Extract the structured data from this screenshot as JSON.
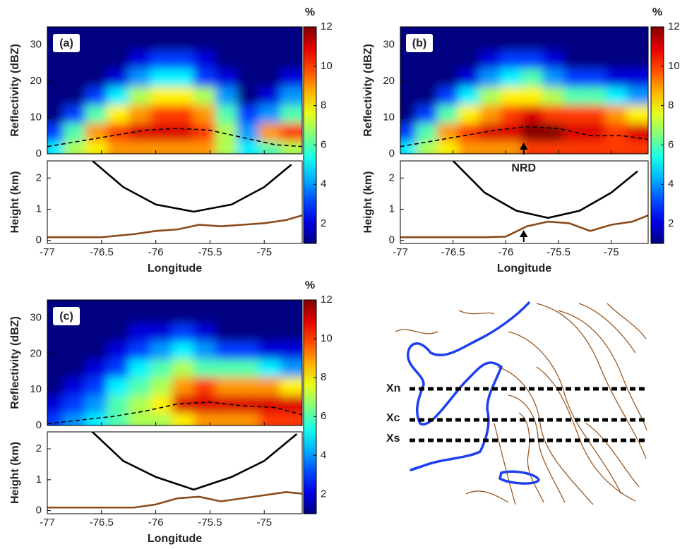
{
  "chart_data": [
    {
      "type": "heatmap",
      "panel_label": "(a)",
      "xlabel": "Longitude",
      "xlim": [
        -77,
        -74.65
      ],
      "xticks": [
        -77,
        -76.5,
        -76,
        -75.5,
        -75
      ],
      "ylabel": "Reflectivity (dBZ)",
      "ylim": [
        0,
        35
      ],
      "yticks": [
        0,
        10,
        20,
        30
      ],
      "x": [
        -76.9,
        -76.7,
        -76.5,
        -76.3,
        -76.1,
        -75.9,
        -75.7,
        -75.5,
        -75.3,
        -75.1,
        -74.9,
        -74.7
      ],
      "y": [
        2.5,
        7.5,
        12.5,
        17.5,
        22.5,
        27.5,
        32.5
      ],
      "z": [
        [
          5,
          7,
          8,
          9,
          9,
          9,
          9,
          9,
          7,
          5,
          6,
          7
        ],
        [
          3,
          6,
          9,
          10,
          11,
          11,
          11,
          10,
          7,
          4,
          9,
          10
        ],
        [
          1,
          3,
          6,
          8,
          9,
          10,
          10,
          9,
          6,
          3,
          4,
          6
        ],
        [
          1,
          1,
          3,
          5,
          7,
          8,
          8,
          7,
          4,
          1,
          2,
          4
        ],
        [
          1,
          1,
          1,
          2,
          4,
          5,
          5,
          3,
          2,
          1,
          1,
          2
        ],
        [
          1,
          1,
          1,
          1,
          2,
          3,
          3,
          2,
          1,
          1,
          1,
          1
        ],
        [
          1,
          1,
          1,
          1,
          1,
          1,
          1,
          1,
          1,
          1,
          1,
          1
        ]
      ],
      "colormap": "jet",
      "clim": [
        1,
        12
      ],
      "colorbar_label": "%",
      "colorbar_ticks": [
        2,
        4,
        6,
        8,
        10,
        12
      ],
      "series": [
        {
          "color": "#000000",
          "dash": true,
          "x": [
            -77,
            -76.7,
            -76.4,
            -76.1,
            -75.8,
            -75.5,
            -75.2,
            -74.9,
            -74.65
          ],
          "values": [
            2,
            3.5,
            5,
            6.5,
            7,
            6.5,
            4.5,
            2.5,
            2
          ]
        }
      ],
      "lower": {
        "ylabel": "Height (km)",
        "ylim": [
          -0.1,
          2.55
        ],
        "yticks": [
          0,
          1,
          2
        ],
        "series": [
          {
            "color": "#000000",
            "x": [
              -76.6,
              -76.3,
              -76,
              -75.65,
              -75.3,
              -75,
              -74.75
            ],
            "values": [
              2.6,
              1.71,
              1.15,
              0.92,
              1.15,
              1.71,
              2.43
            ]
          },
          {
            "color": "#8b4a1a",
            "x": [
              -77,
              -76.5,
              -76.2,
              -76,
              -75.8,
              -75.6,
              -75.4,
              -75.2,
              -75,
              -74.8,
              -74.65
            ],
            "values": [
              0.1,
              0.1,
              0.2,
              0.3,
              0.35,
              0.5,
              0.45,
              0.5,
              0.55,
              0.65,
              0.8
            ]
          }
        ]
      }
    },
    {
      "type": "heatmap",
      "panel_label": "(b)",
      "xlabel": "Longitude",
      "xlim": [
        -77,
        -74.65
      ],
      "xticks": [
        -77,
        -76.5,
        -76,
        -75.5,
        -75
      ],
      "ylabel": "Reflectivity (dBZ)",
      "ylim": [
        0,
        35
      ],
      "yticks": [
        0,
        10,
        20,
        30
      ],
      "x": [
        -76.9,
        -76.7,
        -76.5,
        -76.3,
        -76.1,
        -75.9,
        -75.7,
        -75.5,
        -75.3,
        -75.1,
        -74.9,
        -74.7
      ],
      "y": [
        2.5,
        7.5,
        12.5,
        17.5,
        22.5,
        27.5,
        32.5
      ],
      "z": [
        [
          5,
          7,
          8,
          9,
          9,
          9,
          10,
          10,
          10,
          10,
          10,
          10
        ],
        [
          3,
          6,
          9,
          10,
          11,
          11,
          12,
          12,
          11,
          11,
          10,
          11
        ],
        [
          1,
          3,
          6,
          8,
          9,
          10,
          11,
          10,
          10,
          10,
          9,
          8
        ],
        [
          1,
          1,
          3,
          5,
          7,
          8,
          8,
          7,
          6,
          6,
          5,
          4
        ],
        [
          1,
          1,
          1,
          2,
          4,
          5,
          6,
          4,
          3,
          3,
          2,
          2
        ],
        [
          1,
          1,
          1,
          1,
          2,
          3,
          3,
          2,
          1,
          1,
          1,
          1
        ],
        [
          1,
          1,
          1,
          1,
          1,
          1,
          1,
          1,
          1,
          1,
          1,
          1
        ]
      ],
      "colormap": "jet",
      "clim": [
        1,
        12
      ],
      "colorbar_label": "%",
      "colorbar_ticks": [
        2,
        4,
        6,
        8,
        10,
        12
      ],
      "series": [
        {
          "color": "#000000",
          "dash": true,
          "x": [
            -77,
            -76.7,
            -76.4,
            -76.1,
            -75.8,
            -75.5,
            -75.2,
            -74.9,
            -74.65
          ],
          "values": [
            2,
            3.5,
            5,
            6.5,
            7.5,
            7,
            5,
            5,
            4
          ]
        }
      ],
      "annotation": {
        "text": "NRD",
        "x": -75.83
      },
      "lower": {
        "ylabel": "Height (km)",
        "ylim": [
          -0.1,
          2.55
        ],
        "yticks": [
          0,
          1,
          2
        ],
        "series": [
          {
            "color": "#000000",
            "x": [
              -76.5,
              -76.2,
              -75.9,
              -75.6,
              -75.3,
              -75,
              -74.75
            ],
            "values": [
              2.55,
              1.53,
              0.95,
              0.72,
              0.95,
              1.53,
              2.22
            ]
          },
          {
            "color": "#8b4a1a",
            "x": [
              -77,
              -76.5,
              -76.2,
              -76,
              -75.8,
              -75.6,
              -75.4,
              -75.2,
              -75,
              -74.8,
              -74.65
            ],
            "values": [
              0.1,
              0.1,
              0.1,
              0.12,
              0.45,
              0.6,
              0.55,
              0.3,
              0.5,
              0.6,
              0.8
            ]
          }
        ]
      }
    },
    {
      "type": "heatmap",
      "panel_label": "(c)",
      "xlabel": "Longitude",
      "xlim": [
        -77,
        -74.65
      ],
      "xticks": [
        -77,
        -76.5,
        -76,
        -75.5,
        -75
      ],
      "ylabel": "Reflectivity (dBZ)",
      "ylim": [
        0,
        35
      ],
      "yticks": [
        0,
        10,
        20,
        30
      ],
      "x": [
        -76.9,
        -76.7,
        -76.5,
        -76.3,
        -76.1,
        -75.9,
        -75.7,
        -75.5,
        -75.3,
        -75.1,
        -74.9,
        -74.7
      ],
      "y": [
        2.5,
        7.5,
        12.5,
        17.5,
        22.5,
        27.5,
        32.5
      ],
      "z": [
        [
          3,
          4,
          5,
          6,
          7,
          7,
          8,
          9,
          9,
          9,
          10,
          10
        ],
        [
          2,
          3,
          4,
          6,
          7,
          8,
          11,
          11,
          11,
          11,
          11,
          11
        ],
        [
          1,
          2,
          3,
          5,
          6,
          7,
          9,
          10,
          9,
          9,
          9,
          8
        ],
        [
          1,
          1,
          2,
          3,
          5,
          6,
          7,
          6,
          6,
          6,
          5,
          4
        ],
        [
          1,
          1,
          1,
          2,
          3,
          4,
          5,
          4,
          3,
          3,
          2,
          2
        ],
        [
          1,
          1,
          1,
          1,
          2,
          2,
          3,
          2,
          1,
          1,
          1,
          1
        ],
        [
          1,
          1,
          1,
          1,
          1,
          1,
          1,
          1,
          1,
          1,
          1,
          1
        ]
      ],
      "colormap": "jet",
      "clim": [
        1,
        12
      ],
      "colorbar_label": "%",
      "colorbar_ticks": [
        2,
        4,
        6,
        8,
        10,
        12
      ],
      "series": [
        {
          "color": "#000000",
          "dash": true,
          "x": [
            -77,
            -76.7,
            -76.4,
            -76.1,
            -75.8,
            -75.5,
            -75.2,
            -74.9,
            -74.65
          ],
          "values": [
            0.5,
            1.5,
            2.5,
            4,
            6,
            6.5,
            5.5,
            5,
            3
          ]
        }
      ],
      "lower": {
        "ylabel": "Height (km)",
        "ylim": [
          -0.1,
          2.55
        ],
        "yticks": [
          0,
          1,
          2
        ],
        "series": [
          {
            "color": "#000000",
            "x": [
              -76.6,
              -76.3,
              -76,
              -75.65,
              -75.3,
              -75,
              -74.7
            ],
            "values": [
              2.6,
              1.61,
              1.09,
              0.68,
              1.09,
              1.61,
              2.48
            ]
          },
          {
            "color": "#8b4a1a",
            "x": [
              -77,
              -76.5,
              -76.2,
              -76,
              -75.8,
              -75.6,
              -75.4,
              -75.2,
              -75,
              -74.8,
              -74.65
            ],
            "values": [
              0.1,
              0.1,
              0.1,
              0.2,
              0.4,
              0.45,
              0.3,
              0.4,
              0.5,
              0.6,
              0.55
            ]
          }
        ]
      }
    }
  ],
  "map_labels": [
    "Xn",
    "Xc",
    "Xs"
  ]
}
